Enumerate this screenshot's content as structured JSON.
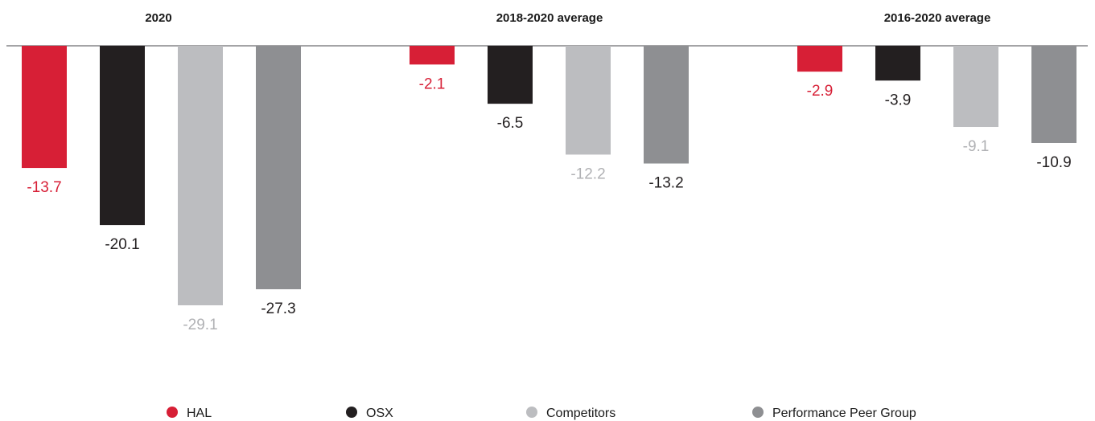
{
  "chart_data": {
    "type": "bar",
    "groups": [
      "2020",
      "2018-2020 average",
      "2016-2020 average"
    ],
    "series": [
      {
        "name": "HAL",
        "color": "#d71f36",
        "label_color": "#d71f36",
        "values": [
          -13.7,
          -2.1,
          -2.9
        ]
      },
      {
        "name": "OSX",
        "color": "#231f20",
        "label_color": "#231f20",
        "values": [
          -20.1,
          -6.5,
          -3.9
        ]
      },
      {
        "name": "Competitors",
        "color": "#bcbdc0",
        "label_color": "#b0b1b4",
        "values": [
          -29.1,
          -12.2,
          -9.1
        ]
      },
      {
        "name": "Performance Peer Group",
        "color": "#8e8f92",
        "label_color": "#231f20",
        "values": [
          -27.3,
          -13.2,
          -10.9
        ]
      }
    ],
    "value_labels": [
      [
        "-13.7",
        "-2.1",
        "-2.9"
      ],
      [
        "-20.1",
        "-6.5",
        "-3.9"
      ],
      [
        "-29.1",
        "-12.2",
        "-9.1"
      ],
      [
        "-27.3",
        "-13.2",
        "-10.9"
      ]
    ],
    "ylim": [
      -29.1,
      0
    ],
    "grid": false,
    "legend_position": "bottom"
  }
}
